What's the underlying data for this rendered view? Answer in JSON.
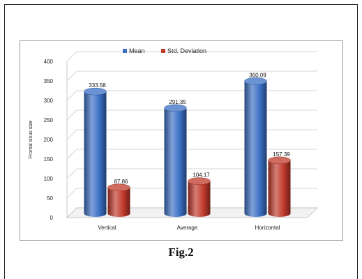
{
  "caption": "Fig.2",
  "chart_data": {
    "type": "bar",
    "style": "3d-cylinder",
    "categories": [
      "Vertical",
      "Average",
      "Horizontal"
    ],
    "series": [
      {
        "name": "Mean",
        "values": [
          333.58,
          291.35,
          360.09
        ],
        "labels": [
          "333.58",
          "291.35",
          "360.09"
        ],
        "color": "#3a6fc4"
      },
      {
        "name": "Std. Deviation",
        "values": [
          87.86,
          104.17,
          157.39
        ],
        "labels": [
          "87.86",
          "104.17",
          "157.39"
        ],
        "color": "#c0392b"
      }
    ],
    "ylabel": "Frontal sinus size",
    "ylim": [
      0,
      400
    ],
    "yticks": [
      "0",
      "50",
      "100",
      "150",
      "200",
      "250",
      "300",
      "350",
      "400"
    ],
    "grid": true,
    "legend": "top"
  }
}
